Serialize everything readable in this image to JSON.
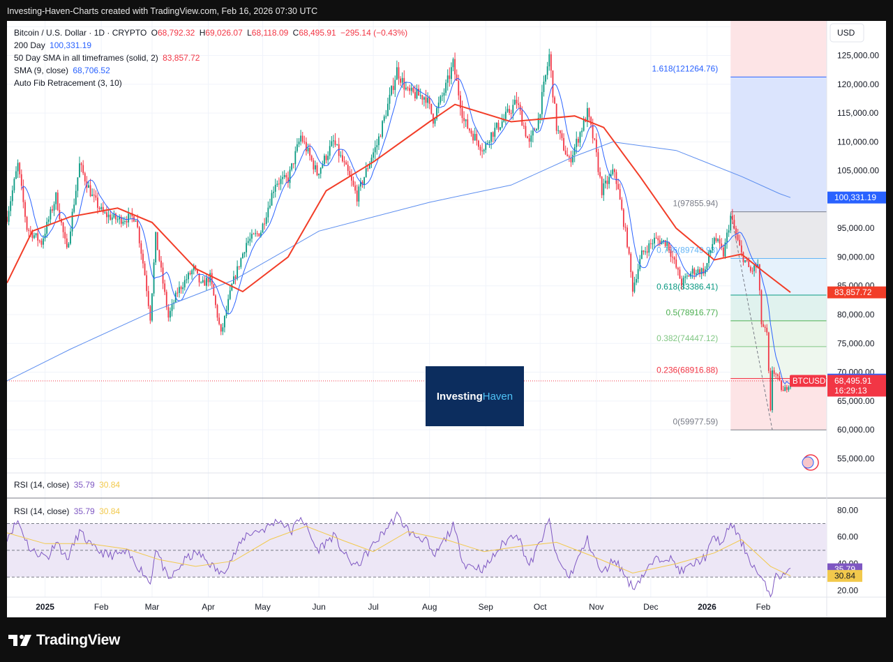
{
  "header": {
    "title": "Investing-Haven-Charts created with TradingView.com, Feb 16, 2026 07:30 UTC"
  },
  "legend": {
    "symbol": "Bitcoin / U.S. Dollar · 1D · CRYPTO",
    "ohlc": {
      "o_label": "O",
      "o": "68,792.32",
      "h_label": "H",
      "h": "69,026.07",
      "l_label": "L",
      "l": "68,118.09",
      "c_label": "C",
      "c": "68,495.91",
      "change": "−295.14 (−0.43%)"
    },
    "ind1_label": "200 Day",
    "ind1_value": "100,331.19",
    "ind2_label": "50 Day SMA in all timeframes (solid, 2)",
    "ind2_value": "83,857.72",
    "ind3_label": "SMA (9, close)",
    "ind3_value": "68,706.52",
    "ind4_label": "Auto Fib Retracement (3, 10)",
    "rsi_label": "RSI (14, close)",
    "rsi_value": "35.79",
    "rsi_ma_value": "30.84"
  },
  "watermark": {
    "part1": "Investing",
    "part2": "Haven"
  },
  "footer": {
    "brand": "TradingView"
  },
  "colors": {
    "up": "#089981",
    "down": "#f23645",
    "sma200": "#5b8def",
    "sma50": "#f23d28",
    "sma9": "#2962ff",
    "rsi": "#7e57c2",
    "rsi_ma": "#f2c94c"
  },
  "chart_data": {
    "type": "candlestick",
    "currency": "USD",
    "y_ticks": [
      "55,000.00",
      "60,000.00",
      "65,000.00",
      "70,000.00",
      "75,000.00",
      "80,000.00",
      "85,000.00",
      "90,000.00",
      "95,000.00",
      "100,000.00",
      "105,000.00",
      "110,000.00",
      "115,000.00",
      "120,000.00",
      "125,000.00",
      "130,000.00"
    ],
    "y_range": [
      52500,
      131000
    ],
    "x_ticks": [
      {
        "label": "2025",
        "date": "2025-01-01",
        "bold": true
      },
      {
        "label": "Feb",
        "date": "2025-02-01"
      },
      {
        "label": "Mar",
        "date": "2025-03-01"
      },
      {
        "label": "Apr",
        "date": "2025-04-01"
      },
      {
        "label": "May",
        "date": "2025-05-01"
      },
      {
        "label": "Jun",
        "date": "2025-06-01"
      },
      {
        "label": "Jul",
        "date": "2025-07-01"
      },
      {
        "label": "Aug",
        "date": "2025-08-01"
      },
      {
        "label": "Sep",
        "date": "2025-09-01"
      },
      {
        "label": "Oct",
        "date": "2025-10-01"
      },
      {
        "label": "Nov",
        "date": "2025-11-01"
      },
      {
        "label": "Dec",
        "date": "2025-12-01"
      },
      {
        "label": "2026",
        "date": "2026-01-01",
        "bold": true
      },
      {
        "label": "Feb",
        "date": "2026-02-01"
      }
    ],
    "x_range": [
      "2024-12-11",
      "2026-03-08"
    ],
    "price_path": [
      [
        "2024-12-11",
        97000
      ],
      [
        "2024-12-17",
        106000
      ],
      [
        "2024-12-22",
        95000
      ],
      [
        "2024-12-30",
        92500
      ],
      [
        "2025-01-07",
        100500
      ],
      [
        "2025-01-13",
        91000
      ],
      [
        "2025-01-20",
        106000
      ],
      [
        "2025-01-27",
        100500
      ],
      [
        "2025-02-02",
        97500
      ],
      [
        "2025-02-10",
        96500
      ],
      [
        "2025-02-20",
        97000
      ],
      [
        "2025-02-25",
        87000
      ],
      [
        "2025-02-28",
        79500
      ],
      [
        "2025-03-03",
        93500
      ],
      [
        "2025-03-10",
        79500
      ],
      [
        "2025-03-15",
        84000
      ],
      [
        "2025-03-24",
        88000
      ],
      [
        "2025-03-28",
        85000
      ],
      [
        "2025-04-02",
        86500
      ],
      [
        "2025-04-08",
        76500
      ],
      [
        "2025-04-14",
        85000
      ],
      [
        "2025-04-22",
        92500
      ],
      [
        "2025-04-30",
        94500
      ],
      [
        "2025-05-08",
        103000
      ],
      [
        "2025-05-15",
        103500
      ],
      [
        "2025-05-22",
        111000
      ],
      [
        "2025-05-31",
        104500
      ],
      [
        "2025-06-09",
        110000
      ],
      [
        "2025-06-17",
        104500
      ],
      [
        "2025-06-22",
        100500
      ],
      [
        "2025-06-30",
        107500
      ],
      [
        "2025-07-03",
        109500
      ],
      [
        "2025-07-10",
        117500
      ],
      [
        "2025-07-14",
        122500
      ],
      [
        "2025-07-20",
        118500
      ],
      [
        "2025-07-30",
        117800
      ],
      [
        "2025-08-03",
        114000
      ],
      [
        "2025-08-10",
        119500
      ],
      [
        "2025-08-14",
        123500
      ],
      [
        "2025-08-20",
        113500
      ],
      [
        "2025-08-31",
        108500
      ],
      [
        "2025-09-03",
        111000
      ],
      [
        "2025-09-10",
        113500
      ],
      [
        "2025-09-18",
        117000
      ],
      [
        "2025-09-25",
        109500
      ],
      [
        "2025-09-30",
        114000
      ],
      [
        "2025-10-06",
        125000
      ],
      [
        "2025-10-10",
        112500
      ],
      [
        "2025-10-17",
        106500
      ],
      [
        "2025-10-27",
        115000
      ],
      [
        "2025-10-31",
        109500
      ],
      [
        "2025-11-04",
        101500
      ],
      [
        "2025-11-11",
        105000
      ],
      [
        "2025-11-18",
        92500
      ],
      [
        "2025-11-21",
        84500
      ],
      [
        "2025-11-26",
        90500
      ],
      [
        "2025-12-03",
        93000
      ],
      [
        "2025-12-10",
        92500
      ],
      [
        "2025-12-18",
        85500
      ],
      [
        "2025-12-24",
        87500
      ],
      [
        "2025-12-31",
        87700
      ],
      [
        "2026-01-05",
        93500
      ],
      [
        "2026-01-10",
        90500
      ],
      [
        "2026-01-14",
        97000
      ],
      [
        "2026-01-20",
        90500
      ],
      [
        "2026-01-25",
        87500
      ],
      [
        "2026-01-29",
        88500
      ],
      [
        "2026-01-31",
        78500
      ],
      [
        "2026-02-03",
        76500
      ],
      [
        "2026-02-05",
        63000
      ],
      [
        "2026-02-06",
        70500
      ],
      [
        "2026-02-08",
        69500
      ],
      [
        "2026-02-12",
        66500
      ],
      [
        "2026-02-16",
        68495.91
      ]
    ],
    "sma200_path": [
      [
        "2024-12-11",
        68500
      ],
      [
        "2025-01-15",
        74000
      ],
      [
        "2025-03-01",
        80500
      ],
      [
        "2025-04-15",
        86000
      ],
      [
        "2025-06-01",
        94500
      ],
      [
        "2025-08-01",
        99500
      ],
      [
        "2025-09-15",
        102500
      ],
      [
        "2025-10-20",
        107500
      ],
      [
        "2025-11-10",
        110000
      ],
      [
        "2025-12-15",
        108500
      ],
      [
        "2026-01-20",
        104000
      ],
      [
        "2026-02-10",
        101000
      ],
      [
        "2026-02-16",
        100331.19
      ]
    ],
    "sma50_path": [
      [
        "2024-12-11",
        85500
      ],
      [
        "2024-12-25",
        94500
      ],
      [
        "2025-01-15",
        97000
      ],
      [
        "2025-02-10",
        98500
      ],
      [
        "2025-03-01",
        96000
      ],
      [
        "2025-03-25",
        88000
      ],
      [
        "2025-04-20",
        84000
      ],
      [
        "2025-05-15",
        90000
      ],
      [
        "2025-06-05",
        101500
      ],
      [
        "2025-07-01",
        106500
      ],
      [
        "2025-08-01",
        113500
      ],
      [
        "2025-08-15",
        116500
      ],
      [
        "2025-09-15",
        113500
      ],
      [
        "2025-10-20",
        114500
      ],
      [
        "2025-11-05",
        112500
      ],
      [
        "2025-11-25",
        104000
      ],
      [
        "2025-12-15",
        95000
      ],
      [
        "2026-01-05",
        89500
      ],
      [
        "2026-01-20",
        90500
      ],
      [
        "2026-02-01",
        87500
      ],
      [
        "2026-02-16",
        83857.72
      ]
    ],
    "fib": {
      "levels": [
        {
          "ratio": "1.618",
          "label": "1.618(121264.76)",
          "price": 121264.76,
          "color": "#2962ff",
          "fill": "#dbe4fd"
        },
        {
          "ratio": "1",
          "label": "1(97855.94)",
          "price": 97855.94,
          "color": "#787b86",
          "fill": "#e9e9ec"
        },
        {
          "ratio": "0.786",
          "label": "0.786(89749.93)",
          "price": 89749.93,
          "color": "#64b5f6",
          "fill": "#e6f2fc"
        },
        {
          "ratio": "0.618",
          "label": "0.618(83386.41)",
          "price": 83386.41,
          "color": "#089981",
          "fill": "#e0f2ee"
        },
        {
          "ratio": "0.5",
          "label": "0.5(78916.77)",
          "price": 78916.77,
          "color": "#4caf50",
          "fill": "#e9f5e9"
        },
        {
          "ratio": "0.382",
          "label": "0.382(74447.12)",
          "price": 74447.12,
          "color": "#81c784",
          "fill": "#eef7ee"
        },
        {
          "ratio": "0.236",
          "label": "0.236(68916.88)",
          "price": 68916.88,
          "color": "#f23645",
          "fill": "#fde4e6"
        },
        {
          "ratio": "0",
          "label": "0(59977.59)",
          "price": 59977.59,
          "color": "#787b86",
          "fill": "#fde4e6"
        }
      ],
      "start": "2026-01-14",
      "end": "2026-02-06"
    },
    "price_labels": [
      {
        "text": "100,331.19",
        "price": 100331.19,
        "bg": "#2962ff"
      },
      {
        "text": "83,857.72",
        "price": 83857.72,
        "bg": "#f23d28"
      },
      {
        "text": "68,706.52",
        "price": 68706.52,
        "bg": "#2962ff"
      },
      {
        "text": "68,495.91",
        "price": 68495.91,
        "bg": "#f23645"
      },
      {
        "text": "16:29:13",
        "price": 66800,
        "bg": "#f23645"
      }
    ],
    "symbol_tag": "BTCUSD",
    "rsi": {
      "y_ticks": [
        "20.00",
        "40.00",
        "60.00",
        "80.00"
      ],
      "y_range": [
        15,
        88
      ],
      "upper": 70,
      "middle": 50,
      "lower": 30,
      "path": [
        [
          "2024-12-11",
          60
        ],
        [
          "2024-12-17",
          72
        ],
        [
          "2024-12-24",
          50
        ],
        [
          "2025-01-03",
          45
        ],
        [
          "2025-01-07",
          58
        ],
        [
          "2025-01-13",
          43
        ],
        [
          "2025-01-20",
          64
        ],
        [
          "2025-01-27",
          52
        ],
        [
          "2025-02-05",
          46
        ],
        [
          "2025-02-15",
          48
        ],
        [
          "2025-02-25",
          32
        ],
        [
          "2025-02-28",
          25
        ],
        [
          "2025-03-03",
          52
        ],
        [
          "2025-03-10",
          27
        ],
        [
          "2025-03-20",
          44
        ],
        [
          "2025-03-26",
          48
        ],
        [
          "2025-04-02",
          40
        ],
        [
          "2025-04-08",
          32
        ],
        [
          "2025-04-15",
          46
        ],
        [
          "2025-04-22",
          62
        ],
        [
          "2025-05-02",
          66
        ],
        [
          "2025-05-10",
          73
        ],
        [
          "2025-05-17",
          64
        ],
        [
          "2025-05-22",
          76
        ],
        [
          "2025-05-31",
          50
        ],
        [
          "2025-06-09",
          61
        ],
        [
          "2025-06-17",
          43
        ],
        [
          "2025-06-22",
          38
        ],
        [
          "2025-07-01",
          54
        ],
        [
          "2025-07-14",
          76
        ],
        [
          "2025-07-22",
          62
        ],
        [
          "2025-07-30",
          58
        ],
        [
          "2025-08-03",
          44
        ],
        [
          "2025-08-14",
          68
        ],
        [
          "2025-08-20",
          40
        ],
        [
          "2025-08-31",
          36
        ],
        [
          "2025-09-10",
          54
        ],
        [
          "2025-09-18",
          64
        ],
        [
          "2025-09-25",
          38
        ],
        [
          "2025-10-01",
          56
        ],
        [
          "2025-10-06",
          72
        ],
        [
          "2025-10-10",
          44
        ],
        [
          "2025-10-17",
          30
        ],
        [
          "2025-10-27",
          58
        ],
        [
          "2025-11-04",
          32
        ],
        [
          "2025-11-11",
          44
        ],
        [
          "2025-11-21",
          22
        ],
        [
          "2025-12-03",
          42
        ],
        [
          "2025-12-10",
          46
        ],
        [
          "2025-12-18",
          34
        ],
        [
          "2025-12-31",
          45
        ],
        [
          "2026-01-05",
          60
        ],
        [
          "2026-01-10",
          55
        ],
        [
          "2026-01-14",
          71
        ],
        [
          "2026-01-20",
          56
        ],
        [
          "2026-01-25",
          42
        ],
        [
          "2026-01-31",
          28
        ],
        [
          "2026-02-05",
          17
        ],
        [
          "2026-02-08",
          30
        ],
        [
          "2026-02-12",
          32
        ],
        [
          "2026-02-16",
          35.79
        ]
      ],
      "ma_path": [
        [
          "2024-12-11",
          63
        ],
        [
          "2025-01-01",
          55
        ],
        [
          "2025-01-25",
          55
        ],
        [
          "2025-02-15",
          51
        ],
        [
          "2025-03-05",
          43
        ],
        [
          "2025-03-25",
          38
        ],
        [
          "2025-04-15",
          42
        ],
        [
          "2025-05-05",
          58
        ],
        [
          "2025-05-25",
          68
        ],
        [
          "2025-06-15",
          57
        ],
        [
          "2025-07-01",
          49
        ],
        [
          "2025-07-20",
          64
        ],
        [
          "2025-08-10",
          58
        ],
        [
          "2025-08-31",
          49
        ],
        [
          "2025-09-20",
          53
        ],
        [
          "2025-10-10",
          56
        ],
        [
          "2025-10-31",
          45
        ],
        [
          "2025-11-21",
          33
        ],
        [
          "2025-12-15",
          40
        ],
        [
          "2026-01-05",
          48
        ],
        [
          "2026-01-20",
          58
        ],
        [
          "2026-02-05",
          38
        ],
        [
          "2026-02-16",
          30.84
        ]
      ]
    }
  }
}
